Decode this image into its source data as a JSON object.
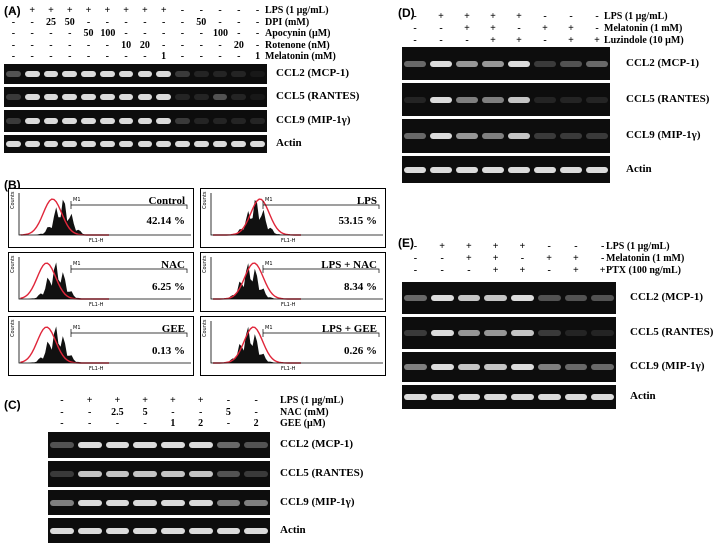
{
  "panelA": {
    "label": "(A)",
    "conditions": [
      {
        "name": "LPS (1 µg/mL)",
        "cells": [
          "-",
          "+",
          "+",
          "+",
          "+",
          "+",
          "+",
          "+",
          "+",
          "-",
          "-",
          "-",
          "-",
          "-"
        ]
      },
      {
        "name": "DPI (mM)",
        "cells": [
          "-",
          "-",
          "25",
          "50",
          "-",
          "-",
          "-",
          "-",
          "-",
          "-",
          "50",
          "-",
          "-",
          "-"
        ]
      },
      {
        "name": "Apocynin (µM)",
        "cells": [
          "-",
          "-",
          "-",
          "-",
          "50",
          "100",
          "-",
          "-",
          "-",
          "-",
          "-",
          "100",
          "-",
          "-"
        ]
      },
      {
        "name": "Rotenone (nM)",
        "cells": [
          "-",
          "-",
          "-",
          "-",
          "-",
          "-",
          "10",
          "20",
          "-",
          "-",
          "-",
          "-",
          "20",
          "-"
        ]
      },
      {
        "name": "Melatonin (mM)",
        "cells": [
          "-",
          "-",
          "-",
          "-",
          "-",
          "-",
          "-",
          "-",
          "1",
          "-",
          "-",
          "-",
          "-",
          "1"
        ]
      }
    ],
    "gels": [
      "CCL2 (MCP-1)",
      "CCL5 (RANTES)",
      "CCL9 (MIP-1γ)",
      "Actin"
    ]
  },
  "panelB": {
    "label": "(B)",
    "histograms": [
      {
        "name": "Control",
        "pct": "42.14 %"
      },
      {
        "name": "LPS",
        "pct": "53.15 %"
      },
      {
        "name": "NAC",
        "pct": "6.25 %"
      },
      {
        "name": "LPS + NAC",
        "pct": "8.34 %"
      },
      {
        "name": "GEE",
        "pct": "0.13 %"
      },
      {
        "name": "LPS + GEE",
        "pct": "0.26 %"
      }
    ],
    "axis_label": "FL1-H",
    "y_label": "Counts",
    "marker": "M1"
  },
  "panelC": {
    "label": "(C)",
    "conditions": [
      {
        "name": "LPS (1 µg/mL)",
        "cells": [
          "-",
          "+",
          "+",
          "+",
          "+",
          "+",
          "-",
          "-"
        ]
      },
      {
        "name": "NAC (mM)",
        "cells": [
          "-",
          "-",
          "2.5",
          "5",
          "-",
          "-",
          "5",
          "-"
        ]
      },
      {
        "name": "GEE (µM)",
        "cells": [
          "-",
          "-",
          "-",
          "-",
          "1",
          "2",
          "-",
          "2"
        ]
      }
    ],
    "gels": [
      "CCL2 (MCP-1)",
      "CCL5 (RANTES)",
      "CCL9 (MIP-1γ)",
      "Actin"
    ]
  },
  "panelD": {
    "label": "(D)",
    "conditions": [
      {
        "name": "LPS (1 µg/mL)",
        "cells": [
          "-",
          "+",
          "+",
          "+",
          "+",
          "-",
          "-",
          "-"
        ]
      },
      {
        "name": "Melatonin (1 mM)",
        "cells": [
          "-",
          "-",
          "+",
          "+",
          "-",
          "+",
          "+",
          "-"
        ]
      },
      {
        "name": "Luzindole (10 µM)",
        "cells": [
          "-",
          "-",
          "-",
          "+",
          "+",
          "-",
          "+",
          "+"
        ]
      }
    ],
    "gels": [
      "CCL2 (MCP-1)",
      "CCL5 (RANTES)",
      "CCL9 (MIP-1γ)",
      "Actin"
    ]
  },
  "panelE": {
    "label": "(E)",
    "conditions": [
      {
        "name": "LPS (1 µg/mL)",
        "cells": [
          "-",
          "+",
          "+",
          "+",
          "+",
          "-",
          "-",
          "-"
        ]
      },
      {
        "name": "Melatonin (1 mM)",
        "cells": [
          "-",
          "-",
          "+",
          "+",
          "-",
          "+",
          "+",
          "-"
        ]
      },
      {
        "name": "PTX (100 ng/mL)",
        "cells": [
          "-",
          "-",
          "-",
          "+",
          "+",
          "-",
          "+",
          "+"
        ]
      }
    ],
    "gels": [
      "CCL2 (MCP-1)",
      "CCL5 (RANTES)",
      "CCL9 (MIP-1γ)",
      "Actin"
    ]
  }
}
